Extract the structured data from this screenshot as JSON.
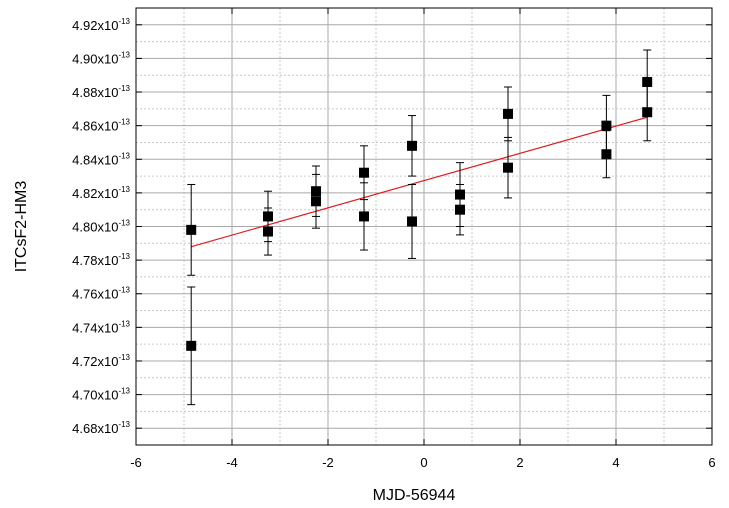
{
  "chart_data": {
    "type": "scatter",
    "xlabel": "MJD-56944",
    "ylabel": "ITCsF2-HM3",
    "xlim": [
      -6,
      6
    ],
    "ylim": [
      4.67,
      4.93
    ],
    "y_scale_exponent": "-13",
    "x_ticks": [
      -6,
      -4,
      -2,
      0,
      2,
      4,
      6
    ],
    "x_tick_labels": [
      "-6",
      "-4",
      "-2",
      "0",
      "2",
      "4",
      "6"
    ],
    "y_ticks": [
      4.68,
      4.7,
      4.72,
      4.74,
      4.76,
      4.78,
      4.8,
      4.82,
      4.84,
      4.86,
      4.88,
      4.9,
      4.92
    ],
    "y_tick_mantissas": [
      "4.68x10",
      "4.70x10",
      "4.72x10",
      "4.74x10",
      "4.76x10",
      "4.78x10",
      "4.80x10",
      "4.82x10",
      "4.84x10",
      "4.86x10",
      "4.88x10",
      "4.90x10",
      "4.92x10"
    ],
    "grid": true,
    "series": [
      {
        "marker": "square",
        "color": "#000000",
        "points": [
          {
            "x": -4.85,
            "y": 4.798,
            "err": 0.027
          },
          {
            "x": -4.85,
            "y": 4.729,
            "err": 0.035
          },
          {
            "x": -3.25,
            "y": 4.806,
            "err": 0.015
          },
          {
            "x": -3.25,
            "y": 4.797,
            "err": 0.014
          },
          {
            "x": -2.25,
            "y": 4.821,
            "err": 0.015
          },
          {
            "x": -2.25,
            "y": 4.815,
            "err": 0.016
          },
          {
            "x": -1.25,
            "y": 4.832,
            "err": 0.016
          },
          {
            "x": -1.25,
            "y": 4.806,
            "err": 0.02
          },
          {
            "x": -0.25,
            "y": 4.848,
            "err": 0.018
          },
          {
            "x": -0.25,
            "y": 4.803,
            "err": 0.022
          },
          {
            "x": 0.75,
            "y": 4.819,
            "err": 0.019
          },
          {
            "x": 0.75,
            "y": 4.81,
            "err": 0.015
          },
          {
            "x": 1.75,
            "y": 4.867,
            "err": 0.016
          },
          {
            "x": 1.75,
            "y": 4.835,
            "err": 0.018
          },
          {
            "x": 3.8,
            "y": 4.86,
            "err": 0.018
          },
          {
            "x": 3.8,
            "y": 4.843,
            "err": 0.014
          },
          {
            "x": 4.65,
            "y": 4.886,
            "err": 0.019
          },
          {
            "x": 4.65,
            "y": 4.868,
            "err": 0.017
          }
        ]
      }
    ],
    "fit_line": {
      "color": "#e31a1c",
      "x": [
        -4.85,
        4.65
      ],
      "y": [
        4.788,
        4.865
      ]
    }
  }
}
